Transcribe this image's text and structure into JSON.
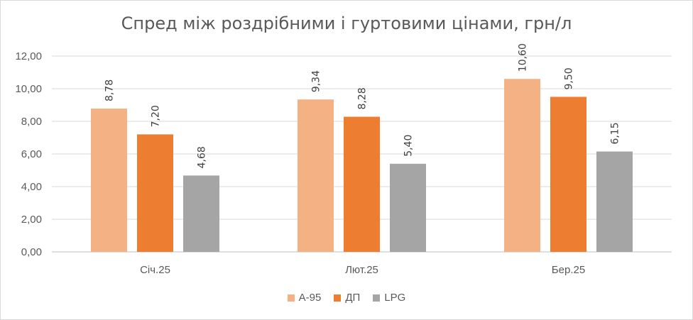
{
  "chart_data": {
    "type": "bar",
    "title": "Спред між роздрібними і гуртовими цінами, грн/л",
    "categories": [
      "Січ.25",
      "Лют.25",
      "Бер.25"
    ],
    "series": [
      {
        "name": "А-95",
        "values": [
          8.78,
          9.34,
          10.6
        ],
        "labels": [
          "8,78",
          "9,34",
          "10,60"
        ],
        "color": "#f4b183"
      },
      {
        "name": "ДП",
        "values": [
          7.2,
          8.28,
          9.5
        ],
        "labels": [
          "7,20",
          "8,28",
          "9,50"
        ],
        "color": "#ed7d31"
      },
      {
        "name": "LPG",
        "values": [
          4.68,
          5.4,
          6.15
        ],
        "labels": [
          "4,68",
          "5,40",
          "6,15"
        ],
        "color": "#a5a5a5"
      }
    ],
    "yticks": [
      {
        "value": 0,
        "label": "0,00"
      },
      {
        "value": 2,
        "label": "2,00"
      },
      {
        "value": 4,
        "label": "4,00"
      },
      {
        "value": 6,
        "label": "6,00"
      },
      {
        "value": 8,
        "label": "8,00"
      },
      {
        "value": 10,
        "label": "10,00"
      },
      {
        "value": 12,
        "label": "12,00"
      }
    ],
    "ylim": [
      0,
      12
    ],
    "grid": true,
    "legend_position": "bottom",
    "xlabel": "",
    "ylabel": ""
  }
}
